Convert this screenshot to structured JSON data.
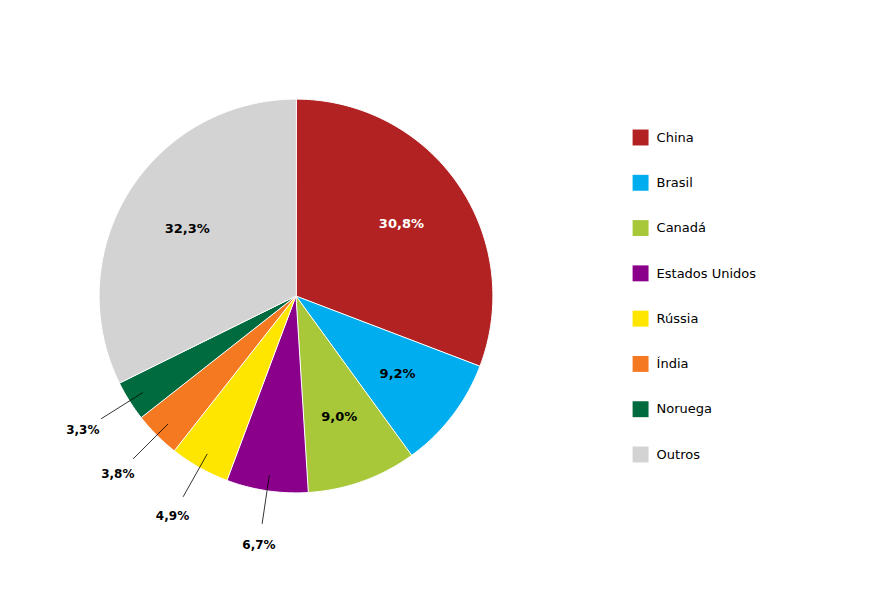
{
  "chart_data": {
    "type": "pie",
    "categories": [
      "China",
      "Brasil",
      "Canadá",
      "Estados Unidos",
      "Rússia",
      "Índia",
      "Noruega",
      "Outros"
    ],
    "values": [
      30.8,
      9.2,
      9.0,
      6.7,
      4.9,
      3.8,
      3.3,
      32.3
    ],
    "value_labels": [
      "30,8%",
      "9,2%",
      "9,0%",
      "6,7%",
      "4,9%",
      "3,8%",
      "3,3%",
      "32,3%"
    ],
    "colors": [
      "#B22222",
      "#00AEEF",
      "#A8C83A",
      "#8B008B",
      "#FFE600",
      "#F47920",
      "#006B3E",
      "#D3D3D3"
    ],
    "data_labels": true,
    "legend": "right"
  }
}
